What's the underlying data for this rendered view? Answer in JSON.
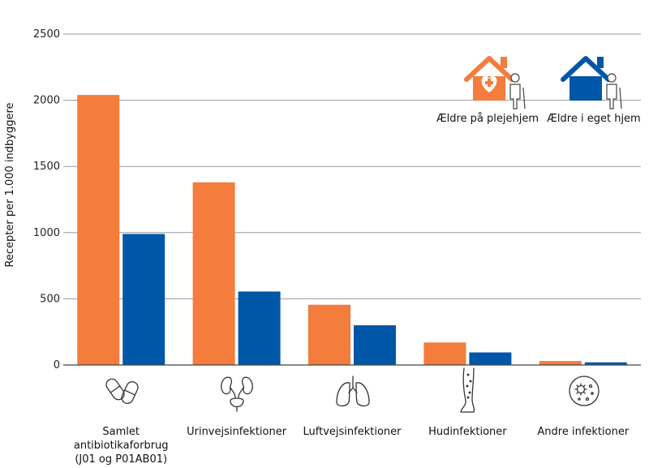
{
  "chart_data": {
    "type": "bar",
    "ylabel": "Recepter per 1.000 indbyggere",
    "ylim": [
      0,
      2500
    ],
    "yticks": [
      0,
      500,
      1000,
      1500,
      2000,
      2500
    ],
    "grid": true,
    "legend_position": "top-right",
    "categories": [
      [
        "Samlet",
        "antibiotikaforbrug",
        "(J01 og P01AB01)"
      ],
      [
        "Urinvejsinfektioner"
      ],
      [
        "Luftvejsinfektioner"
      ],
      [
        "Hudinfektioner"
      ],
      [
        "Andre infektioner"
      ]
    ],
    "category_icons": [
      "pills-icon",
      "kidney-icon",
      "lungs-icon",
      "leg-skin-icon",
      "microbe-icon"
    ],
    "series": [
      {
        "name": "Ældre på plejehjem",
        "color": "#F47C3C",
        "icon": "nursing-home-icon",
        "values": [
          2040,
          1380,
          455,
          170,
          30
        ]
      },
      {
        "name": "Ældre i eget hjem",
        "color": "#0057A8",
        "icon": "own-home-icon",
        "values": [
          990,
          555,
          300,
          95,
          20
        ]
      }
    ]
  }
}
